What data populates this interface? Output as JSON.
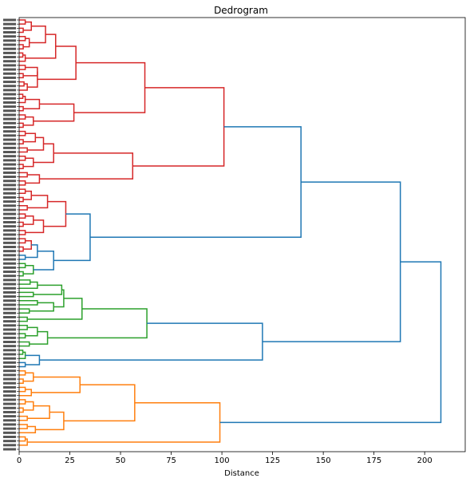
{
  "chart_data": {
    "type": "dendrogram",
    "orientation": "horizontal",
    "title": "Dedrogram",
    "xlabel": "Distance",
    "ylabel": "",
    "xlim": [
      0,
      220
    ],
    "xticks": [
      0,
      25,
      50,
      75,
      100,
      125,
      150,
      175,
      200
    ],
    "leaf_count": 105,
    "clusters": [
      {
        "color": "#d62728",
        "leaf_start": 0,
        "leaf_end": 57
      },
      {
        "color": "#2ca02c",
        "leaf_start": 58,
        "leaf_end": 83
      },
      {
        "color": "#ff7f0e",
        "leaf_start": 84,
        "leaf_end": 104
      }
    ],
    "link_color_above_threshold": "#1f77b4",
    "tree": {
      "d": 208,
      "c": [
        {
          "d": 188,
          "c": [
            {
              "d": 139,
              "c": [
                {
                  "d": 101,
                  "c": [
                    {
                      "d": 62,
                      "c": [
                        {
                          "d": 28,
                          "c": [
                            {
                              "d": 18,
                              "c": [
                                {
                                  "d": 13,
                                  "c": [
                                    {
                                      "d": 6,
                                      "c": [
                                        {
                                          "d": 3,
                                          "n": 2
                                        },
                                        {
                                          "d": 2,
                                          "n": 2
                                        }
                                      ]
                                    },
                                    {
                                      "d": 5,
                                      "c": [
                                        {
                                          "d": 3,
                                          "n": 2
                                        },
                                        {
                                          "d": 2,
                                          "n": 2
                                        }
                                      ]
                                    }
                                  ]
                                },
                                {
                                  "d": 3,
                                  "n": 3
                                }
                              ]
                            },
                            {
                              "d": 9,
                              "c": [
                                {
                                  "d": 9,
                                  "c": [
                                    {
                                      "d": 3,
                                      "n": 2
                                    },
                                    {
                                      "d": 2,
                                      "n": 2
                                    }
                                  ]
                                },
                                {
                                  "d": 4,
                                  "n": 3
                                }
                              ]
                            }
                          ]
                        },
                        {
                          "d": 27,
                          "c": [
                            {
                              "d": 10,
                              "c": [
                                {
                                  "d": 3,
                                  "n": 3
                                },
                                {
                                  "d": 2,
                                  "n": 2
                                }
                              ]
                            },
                            {
                              "d": 7,
                              "c": [
                                {
                                  "d": 3,
                                  "n": 2
                                },
                                {
                                  "d": 2,
                                  "n": 2
                                }
                              ]
                            }
                          ]
                        }
                      ]
                    },
                    {
                      "d": 56,
                      "c": [
                        {
                          "d": 17,
                          "c": [
                            {
                              "d": 12,
                              "c": [
                                {
                                  "d": 8,
                                  "c": [
                                    {
                                      "d": 3,
                                      "n": 2
                                    },
                                    {
                                      "d": 2,
                                      "n": 2
                                    }
                                  ]
                                },
                                {
                                  "d": 4,
                                  "n": 2
                                }
                              ]
                            },
                            {
                              "d": 7,
                              "c": [
                                {
                                  "d": 3,
                                  "n": 2
                                },
                                {
                                  "d": 2,
                                  "n": 2
                                }
                              ]
                            }
                          ]
                        },
                        {
                          "d": 10,
                          "c": [
                            {
                              "d": 4,
                              "n": 2
                            },
                            {
                              "d": 3,
                              "n": 2
                            }
                          ]
                        }
                      ]
                    }
                  ]
                },
                {
                  "d": 35,
                  "c": [
                    {
                      "d": 23,
                      "c": [
                        {
                          "d": 14,
                          "c": [
                            {
                              "d": 6,
                              "c": [
                                {
                                  "d": 3,
                                  "n": 2
                                },
                                {
                                  "d": 2,
                                  "n": 2
                                }
                              ]
                            },
                            {
                              "d": 4,
                              "n": 2
                            }
                          ]
                        },
                        {
                          "d": 12,
                          "c": [
                            {
                              "d": 7,
                              "c": [
                                {
                                  "d": 3,
                                  "n": 2
                                },
                                {
                                  "d": 2,
                                  "n": 2
                                }
                              ]
                            },
                            {
                              "d": 3,
                              "n": 2
                            }
                          ]
                        }
                      ]
                    },
                    {
                      "d": 17,
                      "c": [
                        {
                          "d": 9,
                          "c": [
                            {
                              "d": 6,
                              "c": [
                                {
                                  "d": 3,
                                  "n": 2
                                },
                                {
                                  "d": 2,
                                  "n": 2
                                }
                              ]
                            },
                            {
                              "d": 3,
                              "n": 2
                            }
                          ]
                        },
                        {
                          "d": 7,
                          "c": [
                            {
                              "d": 3,
                              "n": 2
                            },
                            {
                              "d": 2,
                              "n": 2
                            }
                          ]
                        }
                      ]
                    }
                  ]
                }
              ]
            },
            {
              "d": 120,
              "c": [
                {
                  "d": 63,
                  "c": [
                    {
                      "d": 31,
                      "c": [
                        {
                          "d": 22,
                          "c": [
                            {
                              "d": 21,
                              "c": [
                                {
                                  "d": 9,
                                  "n": 3
                                },
                                {
                                  "d": 7,
                                  "n": 2
                                }
                              ]
                            },
                            {
                              "d": 17,
                              "c": [
                                {
                                  "d": 9,
                                  "n": 2
                                },
                                {
                                  "d": 5,
                                  "n": 2
                                }
                              ]
                            }
                          ]
                        },
                        {
                          "d": 4,
                          "n": 2
                        }
                      ]
                    },
                    {
                      "d": 14,
                      "c": [
                        {
                          "d": 9,
                          "c": [
                            {
                              "d": 4,
                              "n": 2
                            },
                            {
                              "d": 3,
                              "n": 2
                            }
                          ]
                        },
                        {
                          "d": 5,
                          "n": 2
                        }
                      ]
                    }
                  ]
                },
                {
                  "d": 10,
                  "c": [
                    {
                      "d": 3,
                      "n": 3
                    },
                    {
                      "d": 3,
                      "n": 2
                    }
                  ]
                }
              ]
            }
          ]
        },
        {
          "d": 99,
          "c": [
            {
              "d": 57,
              "c": [
                {
                  "d": 30,
                  "c": [
                    {
                      "d": 7,
                      "c": [
                        {
                          "d": 3,
                          "n": 2
                        },
                        {
                          "d": 2,
                          "n": 2
                        }
                      ]
                    },
                    {
                      "d": 6,
                      "c": [
                        {
                          "d": 3,
                          "n": 2
                        },
                        {
                          "d": 2,
                          "n": 1
                        }
                      ]
                    }
                  ]
                },
                {
                  "d": 22,
                  "c": [
                    {
                      "d": 15,
                      "c": [
                        {
                          "d": 7,
                          "c": [
                            {
                              "d": 3,
                              "n": 2
                            },
                            {
                              "d": 2,
                              "n": 2
                            }
                          ]
                        },
                        {
                          "d": 4,
                          "n": 2
                        }
                      ]
                    },
                    {
                      "d": 8,
                      "c": [
                        {
                          "d": 4,
                          "n": 2
                        },
                        {
                          "d": 3,
                          "n": 1
                        }
                      ]
                    }
                  ]
                }
              ]
            },
            {
              "d": 4,
              "c": [
                {
                  "d": 3,
                  "n": 2
                },
                {
                  "d": 2,
                  "n": 1
                }
              ]
            }
          ]
        }
      ]
    }
  }
}
